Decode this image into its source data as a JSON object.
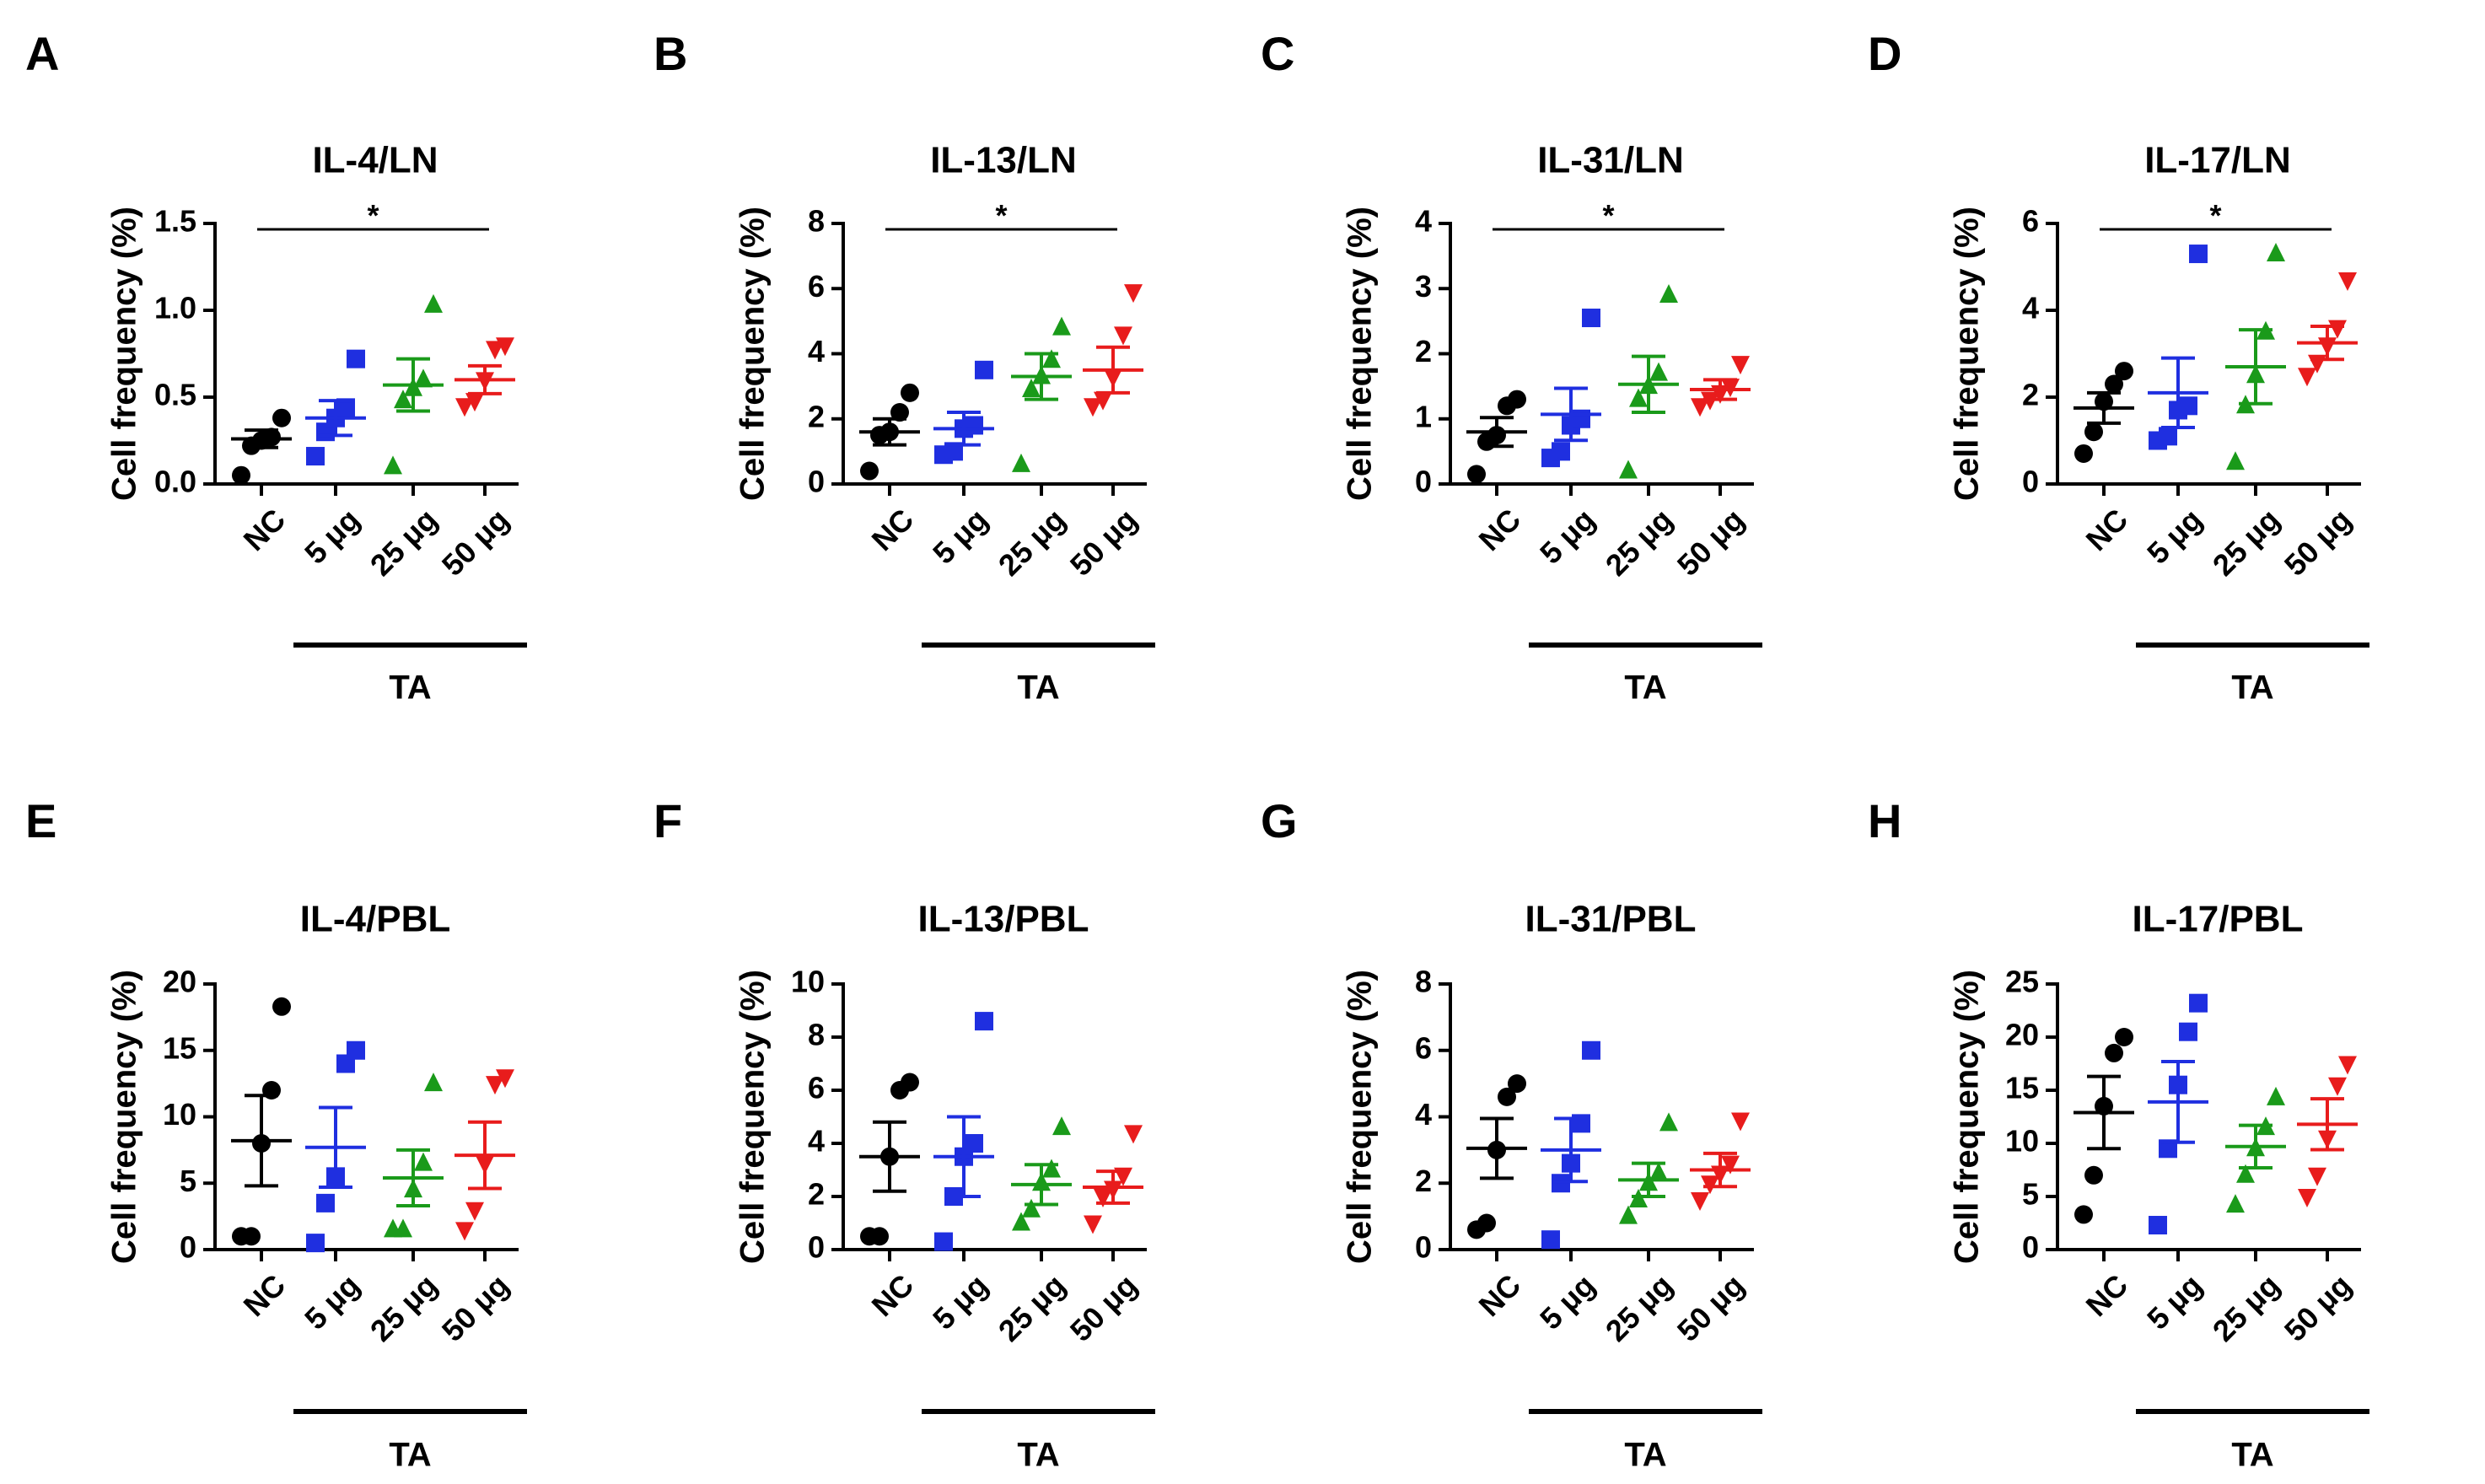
{
  "figure": {
    "description_colors": {
      "NC": "#000000",
      "5 μg": "#1f2fe0",
      "25 μg": "#1a9a1a",
      "50 μg": "#e81c1c"
    }
  },
  "chart_data": [
    {
      "letter": "A",
      "type": "scatter",
      "title": "IL-4/LN",
      "ylabel": "Cell frequency (%)",
      "ylim": [
        0,
        1.5
      ],
      "yticks": [
        "0.0",
        "0.5",
        "1.0",
        "1.5"
      ],
      "ytick_values": [
        0,
        0.5,
        1.0,
        1.5
      ],
      "categories": [
        "NC",
        "5 μg",
        "25 μg",
        "50 μg"
      ],
      "group_label": "TA",
      "significance": "*",
      "series": [
        {
          "name": "NC",
          "color": "#000000",
          "marker": "circle",
          "points": [
            0.05,
            0.22,
            0.25,
            0.27,
            0.38
          ],
          "mean": 0.26,
          "sem": 0.05
        },
        {
          "name": "5 μg",
          "color": "#1f2fe0",
          "marker": "square",
          "points": [
            0.16,
            0.3,
            0.38,
            0.44,
            0.72
          ],
          "mean": 0.38,
          "sem": 0.1
        },
        {
          "name": "25 μg",
          "color": "#1a9a1a",
          "marker": "triangle-up",
          "points": [
            0.1,
            0.48,
            0.55,
            0.6,
            1.03
          ],
          "mean": 0.57,
          "sem": 0.15
        },
        {
          "name": "50 μg",
          "color": "#e81c1c",
          "marker": "triangle-down",
          "points": [
            0.45,
            0.48,
            0.6,
            0.78,
            0.8
          ],
          "mean": 0.6,
          "sem": 0.08
        }
      ]
    },
    {
      "letter": "B",
      "type": "scatter",
      "title": "IL-13/LN",
      "ylabel": "Cell frequency (%)",
      "ylim": [
        0,
        8
      ],
      "yticks": [
        "0",
        "2",
        "4",
        "6",
        "8"
      ],
      "ytick_values": [
        0,
        2,
        4,
        6,
        8
      ],
      "categories": [
        "NC",
        "5 μg",
        "25 μg",
        "50 μg"
      ],
      "group_label": "TA",
      "significance": "*",
      "series": [
        {
          "name": "NC",
          "color": "#000000",
          "marker": "circle",
          "points": [
            0.4,
            1.5,
            1.6,
            2.2,
            2.8
          ],
          "mean": 1.6,
          "sem": 0.4
        },
        {
          "name": "5 μg",
          "color": "#1f2fe0",
          "marker": "square",
          "points": [
            0.9,
            1.0,
            1.7,
            1.8,
            3.5
          ],
          "mean": 1.7,
          "sem": 0.5
        },
        {
          "name": "25 μg",
          "color": "#1a9a1a",
          "marker": "triangle-up",
          "points": [
            0.6,
            2.9,
            3.3,
            3.8,
            4.8
          ],
          "mean": 3.3,
          "sem": 0.7
        },
        {
          "name": "50 μg",
          "color": "#e81c1c",
          "marker": "triangle-down",
          "points": [
            2.4,
            2.6,
            3.3,
            4.6,
            5.9
          ],
          "mean": 3.5,
          "sem": 0.7
        }
      ]
    },
    {
      "letter": "C",
      "type": "scatter",
      "title": "IL-31/LN",
      "ylabel": "Cell frequency (%)",
      "ylim": [
        0,
        4
      ],
      "yticks": [
        "0",
        "1",
        "2",
        "3",
        "4"
      ],
      "ytick_values": [
        0,
        1,
        2,
        3,
        4
      ],
      "categories": [
        "NC",
        "5 μg",
        "25 μg",
        "50 μg"
      ],
      "group_label": "TA",
      "significance": "*",
      "series": [
        {
          "name": "NC",
          "color": "#000000",
          "marker": "circle",
          "points": [
            0.15,
            0.65,
            0.75,
            1.2,
            1.3
          ],
          "mean": 0.8,
          "sem": 0.22
        },
        {
          "name": "5 μg",
          "color": "#1f2fe0",
          "marker": "square",
          "points": [
            0.4,
            0.5,
            0.9,
            1.0,
            2.55
          ],
          "mean": 1.07,
          "sem": 0.4
        },
        {
          "name": "25 μg",
          "color": "#1a9a1a",
          "marker": "triangle-up",
          "points": [
            0.2,
            1.3,
            1.5,
            1.7,
            2.9
          ],
          "mean": 1.53,
          "sem": 0.43
        },
        {
          "name": "50 μg",
          "color": "#e81c1c",
          "marker": "triangle-down",
          "points": [
            1.2,
            1.3,
            1.4,
            1.5,
            1.85
          ],
          "mean": 1.45,
          "sem": 0.15
        }
      ]
    },
    {
      "letter": "D",
      "type": "scatter",
      "title": "IL-17/LN",
      "ylabel": "Cell frequency (%)",
      "ylim": [
        0,
        6
      ],
      "yticks": [
        "0",
        "2",
        "4",
        "6"
      ],
      "ytick_values": [
        0,
        2,
        4,
        6
      ],
      "categories": [
        "NC",
        "5 μg",
        "25 μg",
        "50 μg"
      ],
      "group_label": "TA",
      "significance": "*",
      "series": [
        {
          "name": "NC",
          "color": "#000000",
          "marker": "circle",
          "points": [
            0.7,
            1.2,
            1.9,
            2.3,
            2.6
          ],
          "mean": 1.75,
          "sem": 0.35
        },
        {
          "name": "5 μg",
          "color": "#1f2fe0",
          "marker": "square",
          "points": [
            1.0,
            1.1,
            1.7,
            1.8,
            5.3
          ],
          "mean": 2.1,
          "sem": 0.8
        },
        {
          "name": "25 μg",
          "color": "#1a9a1a",
          "marker": "triangle-up",
          "points": [
            0.5,
            1.8,
            2.5,
            3.5,
            5.3
          ],
          "mean": 2.7,
          "sem": 0.85
        },
        {
          "name": "50 μg",
          "color": "#e81c1c",
          "marker": "triangle-down",
          "points": [
            2.5,
            2.8,
            3.2,
            3.6,
            4.7
          ],
          "mean": 3.25,
          "sem": 0.38
        }
      ]
    },
    {
      "letter": "E",
      "type": "scatter",
      "title": "IL-4/PBL",
      "ylabel": "Cell frequency (%)",
      "ylim": [
        0,
        20
      ],
      "yticks": [
        "0",
        "5",
        "10",
        "15",
        "20"
      ],
      "ytick_values": [
        0,
        5,
        10,
        15,
        20
      ],
      "categories": [
        "NC",
        "5 μg",
        "25 μg",
        "50 μg"
      ],
      "group_label": "TA",
      "significance": "",
      "series": [
        {
          "name": "NC",
          "color": "#000000",
          "marker": "circle",
          "points": [
            1.0,
            1.0,
            8.0,
            12.0,
            18.3
          ],
          "mean": 8.2,
          "sem": 3.4
        },
        {
          "name": "5 μg",
          "color": "#1f2fe0",
          "marker": "square",
          "points": [
            0.5,
            3.5,
            5.5,
            14.0,
            15.0
          ],
          "mean": 7.7,
          "sem": 3.0
        },
        {
          "name": "25 μg",
          "color": "#1a9a1a",
          "marker": "triangle-up",
          "points": [
            1.5,
            1.5,
            4.5,
            6.5,
            12.5
          ],
          "mean": 5.4,
          "sem": 2.1
        },
        {
          "name": "50 μg",
          "color": "#e81c1c",
          "marker": "triangle-down",
          "points": [
            1.5,
            3.0,
            6.5,
            12.5,
            13.0
          ],
          "mean": 7.1,
          "sem": 2.5
        }
      ]
    },
    {
      "letter": "F",
      "type": "scatter",
      "title": "IL-13/PBL",
      "ylabel": "Cell frequency (%)",
      "ylim": [
        0,
        10
      ],
      "yticks": [
        "0",
        "2",
        "4",
        "6",
        "8",
        "10"
      ],
      "ytick_values": [
        0,
        2,
        4,
        6,
        8,
        10
      ],
      "categories": [
        "NC",
        "5 μg",
        "25 μg",
        "50 μg"
      ],
      "group_label": "TA",
      "significance": "",
      "series": [
        {
          "name": "NC",
          "color": "#000000",
          "marker": "circle",
          "points": [
            0.5,
            0.5,
            3.5,
            6.0,
            6.3
          ],
          "mean": 3.5,
          "sem": 1.3
        },
        {
          "name": "5 μg",
          "color": "#1f2fe0",
          "marker": "square",
          "points": [
            0.3,
            2.0,
            3.5,
            4.0,
            8.6
          ],
          "mean": 3.5,
          "sem": 1.5
        },
        {
          "name": "25 μg",
          "color": "#1a9a1a",
          "marker": "triangle-up",
          "points": [
            1.0,
            1.5,
            2.5,
            3.0,
            4.6
          ],
          "mean": 2.45,
          "sem": 0.75
        },
        {
          "name": "50 μg",
          "color": "#e81c1c",
          "marker": "triangle-down",
          "points": [
            1.0,
            2.0,
            2.3,
            2.8,
            4.4
          ],
          "mean": 2.35,
          "sem": 0.6
        }
      ]
    },
    {
      "letter": "G",
      "type": "scatter",
      "title": "IL-31/PBL",
      "ylabel": "Cell frequency (%)",
      "ylim": [
        0,
        8
      ],
      "yticks": [
        "0",
        "2",
        "4",
        "6",
        "8"
      ],
      "ytick_values": [
        0,
        2,
        4,
        6,
        8
      ],
      "categories": [
        "NC",
        "5 μg",
        "25 μg",
        "50 μg"
      ],
      "group_label": "TA",
      "significance": "",
      "series": [
        {
          "name": "NC",
          "color": "#000000",
          "marker": "circle",
          "points": [
            0.6,
            0.8,
            3.0,
            4.6,
            5.0
          ],
          "mean": 3.05,
          "sem": 0.9
        },
        {
          "name": "5 μg",
          "color": "#1f2fe0",
          "marker": "square",
          "points": [
            0.3,
            2.0,
            2.6,
            3.8,
            6.0
          ],
          "mean": 3.0,
          "sem": 0.95
        },
        {
          "name": "25 μg",
          "color": "#1a9a1a",
          "marker": "triangle-up",
          "points": [
            1.0,
            1.5,
            2.0,
            2.3,
            3.8
          ],
          "mean": 2.1,
          "sem": 0.5
        },
        {
          "name": "50 μg",
          "color": "#e81c1c",
          "marker": "triangle-down",
          "points": [
            1.5,
            2.0,
            2.3,
            2.6,
            3.9
          ],
          "mean": 2.4,
          "sem": 0.5
        }
      ]
    },
    {
      "letter": "H",
      "type": "scatter",
      "title": "IL-17/PBL",
      "ylabel": "Cell frequency (%)",
      "ylim": [
        0,
        25
      ],
      "yticks": [
        "0",
        "5",
        "10",
        "15",
        "20",
        "25"
      ],
      "ytick_values": [
        0,
        5,
        10,
        15,
        20,
        25
      ],
      "categories": [
        "NC",
        "5 μg",
        "25 μg",
        "50 μg"
      ],
      "group_label": "TA",
      "significance": "",
      "series": [
        {
          "name": "NC",
          "color": "#000000",
          "marker": "circle",
          "points": [
            3.3,
            7.0,
            13.5,
            18.5,
            20.0
          ],
          "mean": 12.9,
          "sem": 3.4
        },
        {
          "name": "5 μg",
          "color": "#1f2fe0",
          "marker": "square",
          "points": [
            2.3,
            9.5,
            15.5,
            20.5,
            23.2
          ],
          "mean": 13.9,
          "sem": 3.8
        },
        {
          "name": "25 μg",
          "color": "#1a9a1a",
          "marker": "triangle-up",
          "points": [
            4.2,
            7.0,
            9.5,
            11.5,
            14.3
          ],
          "mean": 9.7,
          "sem": 2.0
        },
        {
          "name": "50 μg",
          "color": "#e81c1c",
          "marker": "triangle-down",
          "points": [
            5.0,
            7.0,
            10.5,
            15.5,
            17.5
          ],
          "mean": 11.8,
          "sem": 2.4
        }
      ]
    }
  ]
}
